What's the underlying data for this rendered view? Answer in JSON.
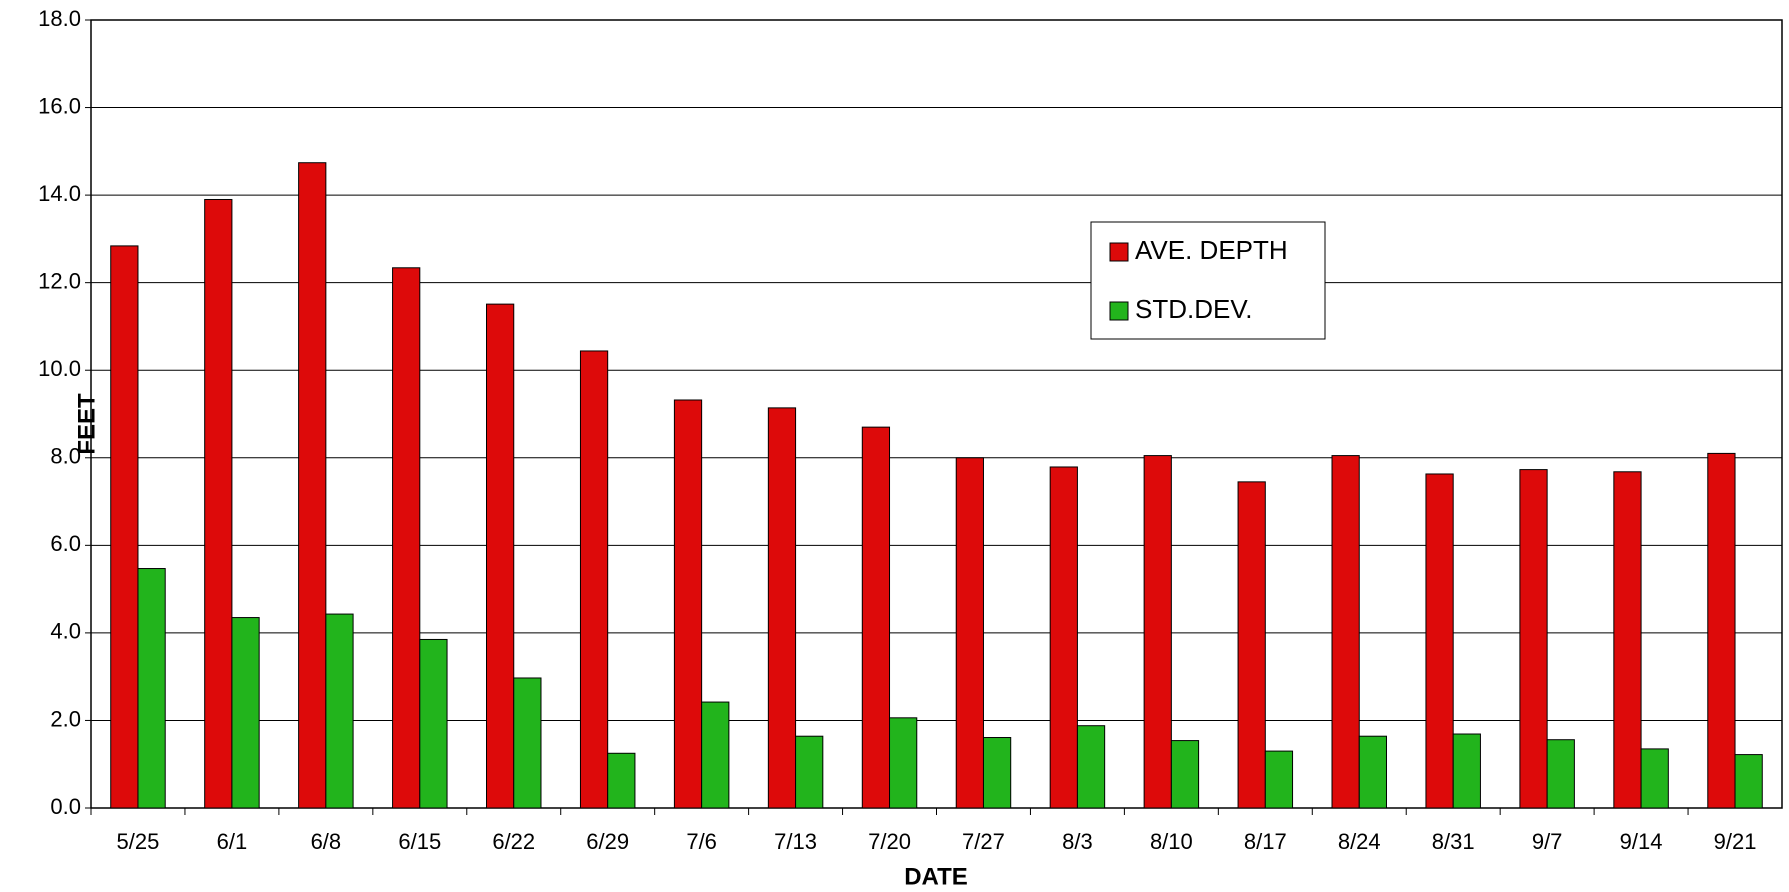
{
  "chart_data": {
    "type": "bar",
    "y_label": "FEET",
    "x_label": "DATE",
    "categories": [
      "5/25",
      "6/1",
      "6/8",
      "6/15",
      "6/22",
      "6/29",
      "7/6",
      "7/13",
      "7/20",
      "7/27",
      "8/3",
      "8/10",
      "8/17",
      "8/24",
      "8/31",
      "9/7",
      "9/14",
      "9/21"
    ],
    "series": [
      {
        "name": "AVE. DEPTH",
        "color": "#dd0a0a",
        "values": [
          12.84,
          13.9,
          14.74,
          12.34,
          11.51,
          10.44,
          9.32,
          9.14,
          8.7,
          8.0,
          7.79,
          8.05,
          7.45,
          8.05,
          7.63,
          7.73,
          7.68,
          8.1
        ]
      },
      {
        "name": "STD.DEV.",
        "color": "#22b41c",
        "values": [
          5.47,
          4.35,
          4.43,
          3.85,
          2.97,
          1.25,
          2.42,
          1.64,
          2.06,
          1.61,
          1.88,
          1.54,
          1.3,
          1.64,
          1.69,
          1.56,
          1.35,
          1.22
        ]
      }
    ],
    "ylim": [
      0,
      18
    ],
    "yticks": [
      {
        "value": 0,
        "label": "0.0"
      },
      {
        "value": 2,
        "label": "2.0"
      },
      {
        "value": 4,
        "label": "4.0"
      },
      {
        "value": 6,
        "label": "6.0"
      },
      {
        "value": 8,
        "label": "8.0"
      },
      {
        "value": 10,
        "label": "10.0"
      },
      {
        "value": 12,
        "label": "12.0"
      },
      {
        "value": 14,
        "label": "14.0"
      },
      {
        "value": 16,
        "label": "16.0"
      },
      {
        "value": 18,
        "label": "18.0"
      }
    ],
    "grid": true
  }
}
